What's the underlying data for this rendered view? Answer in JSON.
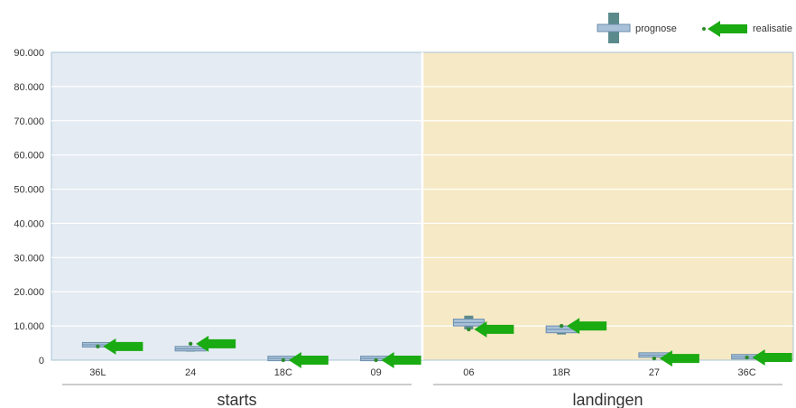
{
  "chart_data": {
    "type": "box",
    "ylim": [
      0,
      90000
    ],
    "y_ticks": [
      "0",
      "10.000",
      "20.000",
      "30.000",
      "40.000",
      "50.000",
      "60.000",
      "70.000",
      "80.000",
      "90.000"
    ],
    "grid": true,
    "legend": {
      "placement": "top-right",
      "entries": [
        {
          "label": "prognose",
          "marker": "box"
        },
        {
          "label": "realisatie",
          "marker": "arrow"
        }
      ]
    },
    "colors": {
      "starts_bg": "#e4ebf2",
      "landingen_bg": "#f6e9c5",
      "box_fill": "#a9c1d8",
      "box_stroke": "#6d8fae",
      "whisker": "#5b8a8c",
      "arrow": "#1aaa12",
      "dot": "#2e8b2e"
    },
    "groups": [
      {
        "label": "starts",
        "categories": [
          "36L",
          "24",
          "18C",
          "09"
        ]
      },
      {
        "label": "landingen",
        "categories": [
          "06",
          "18R",
          "27",
          "36C"
        ]
      }
    ],
    "series": [
      {
        "category": "36L",
        "group": "starts",
        "prognose": {
          "min": 4000,
          "q1": 4000,
          "median": 4500,
          "q3": 5000,
          "max": 5000
        },
        "realisatie": 4000
      },
      {
        "category": "24",
        "group": "starts",
        "prognose": {
          "min": 2500,
          "q1": 2700,
          "median": 3300,
          "q3": 4000,
          "max": 4000
        },
        "realisatie": 4800
      },
      {
        "category": "18C",
        "group": "starts",
        "prognose": {
          "min": 0,
          "q1": 0,
          "median": 500,
          "q3": 1000,
          "max": 1000
        },
        "realisatie": 0
      },
      {
        "category": "09",
        "group": "starts",
        "prognose": {
          "min": 0,
          "q1": 0,
          "median": 500,
          "q3": 1000,
          "max": 1000
        },
        "realisatie": 0
      },
      {
        "category": "06",
        "group": "landingen",
        "prognose": {
          "min": 9000,
          "q1": 10000,
          "median": 11000,
          "q3": 12000,
          "max": 13000
        },
        "realisatie": 9000
      },
      {
        "category": "18R",
        "group": "landingen",
        "prognose": {
          "min": 7500,
          "q1": 8000,
          "median": 9000,
          "q3": 10000,
          "max": 10000
        },
        "realisatie": 10000
      },
      {
        "category": "27",
        "group": "landingen",
        "prognose": {
          "min": 1000,
          "q1": 1000,
          "median": 1500,
          "q3": 2000,
          "max": 2000
        },
        "realisatie": 500
      },
      {
        "category": "36C",
        "group": "landingen",
        "prognose": {
          "min": 500,
          "q1": 500,
          "median": 1000,
          "q3": 1500,
          "max": 1500
        },
        "realisatie": 800
      }
    ]
  }
}
